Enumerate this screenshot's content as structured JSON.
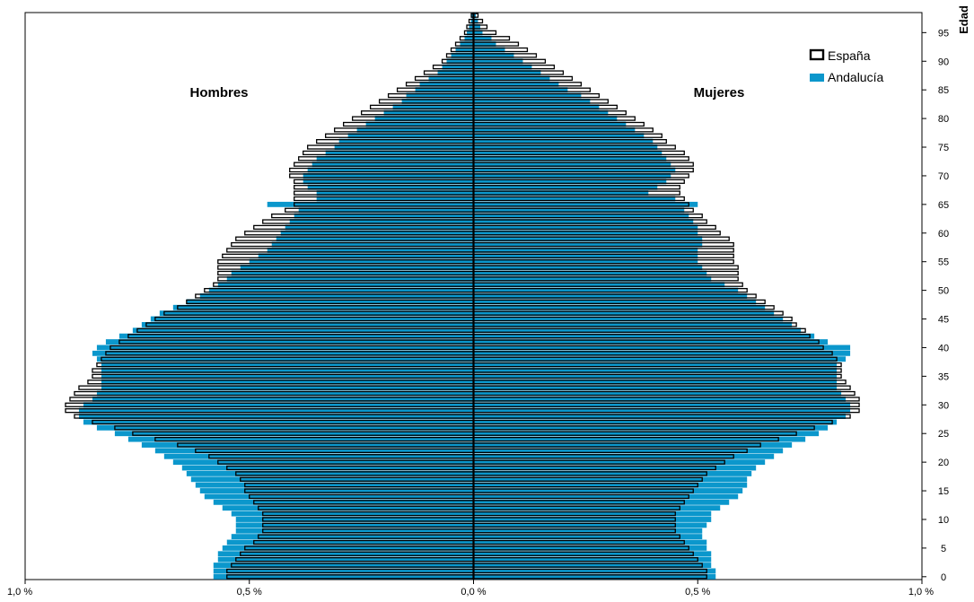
{
  "chart_data": {
    "type": "bar",
    "orientation": "horizontal-population-pyramid",
    "xlim": [
      -1.0,
      1.0
    ],
    "ylim": [
      0,
      99
    ],
    "x_ticks": [
      {
        "value": -1.0,
        "label": "1,0 %"
      },
      {
        "value": -0.5,
        "label": "0,5 %"
      },
      {
        "value": 0.0,
        "label": "0,0 %"
      },
      {
        "value": 0.5,
        "label": "0,5 %"
      },
      {
        "value": 1.0,
        "label": "1,0 %"
      }
    ],
    "y_ticks": [
      0,
      5,
      10,
      15,
      20,
      25,
      30,
      35,
      40,
      45,
      50,
      55,
      60,
      65,
      70,
      75,
      80,
      85,
      90,
      95
    ],
    "y_axis_title": "Edad",
    "left_label": "Hombres",
    "right_label": "Mujeres",
    "legend_position": "top-right",
    "colors": {
      "andalucia": "#0b97cc",
      "espana_fill": "#ffffff",
      "espana_stroke": "#000000"
    },
    "legend": [
      {
        "key": "espana",
        "label": "España"
      },
      {
        "key": "andalucia",
        "label": "Andalucía"
      }
    ],
    "ages": [
      0,
      1,
      2,
      3,
      4,
      5,
      6,
      7,
      8,
      9,
      10,
      11,
      12,
      13,
      14,
      15,
      16,
      17,
      18,
      19,
      20,
      21,
      22,
      23,
      24,
      25,
      26,
      27,
      28,
      29,
      30,
      31,
      32,
      33,
      34,
      35,
      36,
      37,
      38,
      39,
      40,
      41,
      42,
      43,
      44,
      45,
      46,
      47,
      48,
      49,
      50,
      51,
      52,
      53,
      54,
      55,
      56,
      57,
      58,
      59,
      60,
      61,
      62,
      63,
      64,
      65,
      66,
      67,
      68,
      69,
      70,
      71,
      72,
      73,
      74,
      75,
      76,
      77,
      78,
      79,
      80,
      81,
      82,
      83,
      84,
      85,
      86,
      87,
      88,
      89,
      90,
      91,
      92,
      93,
      94,
      95,
      96,
      97,
      98
    ],
    "series": [
      {
        "key": "espana",
        "name": "España",
        "men": [
          0.55,
          0.55,
          0.54,
          0.53,
          0.52,
          0.51,
          0.49,
          0.48,
          0.47,
          0.47,
          0.47,
          0.47,
          0.48,
          0.49,
          0.5,
          0.51,
          0.51,
          0.52,
          0.53,
          0.55,
          0.57,
          0.59,
          0.62,
          0.66,
          0.71,
          0.76,
          0.8,
          0.85,
          0.89,
          0.91,
          0.91,
          0.9,
          0.89,
          0.88,
          0.86,
          0.85,
          0.85,
          0.84,
          0.83,
          0.82,
          0.81,
          0.79,
          0.77,
          0.75,
          0.73,
          0.71,
          0.69,
          0.66,
          0.64,
          0.62,
          0.6,
          0.58,
          0.57,
          0.57,
          0.57,
          0.57,
          0.56,
          0.55,
          0.54,
          0.53,
          0.51,
          0.49,
          0.47,
          0.45,
          0.42,
          0.4,
          0.4,
          0.4,
          0.4,
          0.4,
          0.41,
          0.41,
          0.4,
          0.39,
          0.38,
          0.37,
          0.35,
          0.33,
          0.31,
          0.29,
          0.27,
          0.25,
          0.23,
          0.21,
          0.19,
          0.17,
          0.15,
          0.13,
          0.11,
          0.09,
          0.07,
          0.06,
          0.05,
          0.04,
          0.03,
          0.02,
          0.015,
          0.01,
          0.005
        ],
        "women": [
          0.52,
          0.52,
          0.51,
          0.5,
          0.49,
          0.48,
          0.47,
          0.46,
          0.45,
          0.45,
          0.45,
          0.45,
          0.46,
          0.47,
          0.48,
          0.49,
          0.5,
          0.51,
          0.52,
          0.54,
          0.56,
          0.58,
          0.61,
          0.64,
          0.68,
          0.72,
          0.76,
          0.8,
          0.84,
          0.86,
          0.86,
          0.86,
          0.85,
          0.84,
          0.83,
          0.82,
          0.82,
          0.82,
          0.81,
          0.8,
          0.78,
          0.77,
          0.75,
          0.74,
          0.72,
          0.71,
          0.69,
          0.67,
          0.65,
          0.63,
          0.61,
          0.6,
          0.59,
          0.59,
          0.59,
          0.58,
          0.58,
          0.58,
          0.58,
          0.57,
          0.55,
          0.54,
          0.52,
          0.51,
          0.49,
          0.48,
          0.47,
          0.46,
          0.46,
          0.47,
          0.48,
          0.49,
          0.49,
          0.48,
          0.47,
          0.45,
          0.43,
          0.42,
          0.4,
          0.38,
          0.36,
          0.34,
          0.32,
          0.3,
          0.28,
          0.26,
          0.24,
          0.22,
          0.2,
          0.18,
          0.16,
          0.14,
          0.12,
          0.1,
          0.08,
          0.05,
          0.03,
          0.02,
          0.01
        ]
      },
      {
        "key": "andalucia",
        "name": "Andalucía",
        "men": [
          0.58,
          0.58,
          0.58,
          0.57,
          0.57,
          0.56,
          0.55,
          0.54,
          0.53,
          0.53,
          0.53,
          0.54,
          0.56,
          0.58,
          0.6,
          0.61,
          0.62,
          0.63,
          0.64,
          0.65,
          0.67,
          0.69,
          0.71,
          0.74,
          0.77,
          0.8,
          0.84,
          0.87,
          0.88,
          0.88,
          0.87,
          0.85,
          0.84,
          0.83,
          0.83,
          0.83,
          0.83,
          0.83,
          0.84,
          0.85,
          0.84,
          0.82,
          0.79,
          0.76,
          0.74,
          0.72,
          0.7,
          0.67,
          0.64,
          0.61,
          0.59,
          0.57,
          0.55,
          0.54,
          0.52,
          0.5,
          0.48,
          0.46,
          0.45,
          0.44,
          0.43,
          0.42,
          0.41,
          0.4,
          0.39,
          0.46,
          0.35,
          0.35,
          0.37,
          0.38,
          0.38,
          0.37,
          0.36,
          0.35,
          0.33,
          0.31,
          0.3,
          0.28,
          0.26,
          0.24,
          0.22,
          0.2,
          0.18,
          0.16,
          0.15,
          0.13,
          0.12,
          0.1,
          0.08,
          0.07,
          0.06,
          0.05,
          0.04,
          0.03,
          0.02,
          0.015,
          0.01,
          0.006,
          0.004
        ],
        "women": [
          0.54,
          0.54,
          0.53,
          0.53,
          0.53,
          0.52,
          0.52,
          0.51,
          0.51,
          0.52,
          0.53,
          0.53,
          0.55,
          0.57,
          0.59,
          0.6,
          0.61,
          0.61,
          0.62,
          0.63,
          0.65,
          0.67,
          0.69,
          0.71,
          0.74,
          0.77,
          0.79,
          0.81,
          0.83,
          0.84,
          0.84,
          0.83,
          0.82,
          0.81,
          0.81,
          0.81,
          0.81,
          0.81,
          0.83,
          0.84,
          0.84,
          0.79,
          0.76,
          0.73,
          0.71,
          0.69,
          0.67,
          0.65,
          0.63,
          0.61,
          0.59,
          0.56,
          0.53,
          0.52,
          0.51,
          0.5,
          0.5,
          0.5,
          0.51,
          0.51,
          0.5,
          0.5,
          0.49,
          0.48,
          0.47,
          0.5,
          0.45,
          0.39,
          0.41,
          0.43,
          0.44,
          0.45,
          0.44,
          0.43,
          0.42,
          0.41,
          0.4,
          0.38,
          0.36,
          0.34,
          0.32,
          0.3,
          0.28,
          0.26,
          0.24,
          0.21,
          0.19,
          0.17,
          0.15,
          0.13,
          0.11,
          0.09,
          0.07,
          0.05,
          0.04,
          0.02,
          0.015,
          0.01,
          0.005
        ]
      }
    ]
  }
}
